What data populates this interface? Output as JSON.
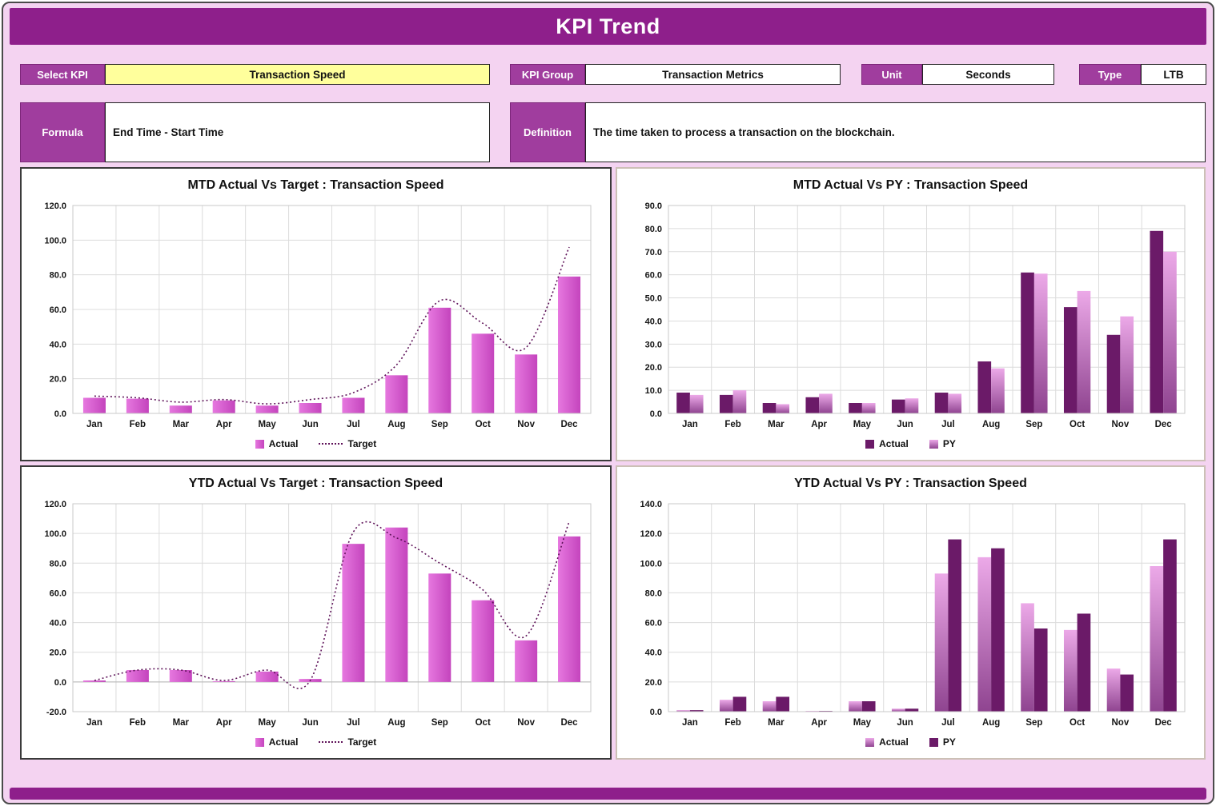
{
  "header": {
    "title": "KPI Trend"
  },
  "controls": {
    "select_kpi": {
      "label": "Select KPI",
      "value": "Transaction Speed"
    },
    "kpi_group": {
      "label": "KPI Group",
      "value": "Transaction Metrics"
    },
    "unit": {
      "label": "Unit",
      "value": "Seconds"
    },
    "type": {
      "label": "Type",
      "value": "LTB"
    },
    "formula": {
      "label": "Formula",
      "value": "End Time - Start Time"
    },
    "definition": {
      "label": "Definition",
      "value": "The time taken to process a transaction on the blockchain."
    }
  },
  "colors": {
    "header_bg": "#8E1F8B",
    "label_bg": "#A03D9E",
    "page_bg": "#F4D3F1",
    "yellow_field": "#FFFF9C",
    "bar_magenta_light": "#E678DF",
    "bar_magenta_dark": "#C444BD",
    "bar_dark_purple": "#6B1A68",
    "py_grad_top": "#ECA9E8",
    "py_grad_bottom": "#8F4490",
    "target_line": "#5E1259",
    "grid": "#DCDCDC"
  },
  "chart_data": [
    {
      "type": "bar",
      "title": "MTD Actual Vs Target : Transaction Speed",
      "categories": [
        "Jan",
        "Feb",
        "Mar",
        "Apr",
        "May",
        "Jun",
        "Jul",
        "Aug",
        "Sep",
        "Oct",
        "Nov",
        "Dec"
      ],
      "series": [
        {
          "name": "Actual",
          "kind": "bar",
          "palette": "magenta",
          "values": [
            9,
            8.5,
            4.5,
            7.5,
            4.5,
            6,
            9,
            22,
            61,
            46,
            34,
            79
          ]
        },
        {
          "name": "Target",
          "kind": "line",
          "palette": "target",
          "values": [
            10,
            9,
            6.5,
            8,
            5.5,
            8,
            12,
            28,
            65,
            52,
            38,
            96
          ]
        }
      ],
      "ylim": [
        0,
        120
      ],
      "ystep": 20,
      "grid": true,
      "legend_position": "bottom"
    },
    {
      "type": "bar",
      "title": "MTD Actual Vs PY : Transaction Speed",
      "categories": [
        "Jan",
        "Feb",
        "Mar",
        "Apr",
        "May",
        "Jun",
        "Jul",
        "Aug",
        "Sep",
        "Oct",
        "Nov",
        "Dec"
      ],
      "series": [
        {
          "name": "Actual",
          "kind": "bar",
          "palette": "darkpurple",
          "values": [
            9,
            8,
            4.5,
            7,
            4.5,
            6,
            9,
            22.5,
            61,
            46,
            34,
            79
          ]
        },
        {
          "name": "PY",
          "kind": "bar",
          "palette": "pygrad",
          "values": [
            8,
            10,
            4,
            8.5,
            4.5,
            6.5,
            8.5,
            19.5,
            60.5,
            53,
            42,
            70
          ]
        }
      ],
      "ylim": [
        0,
        90
      ],
      "ystep": 10,
      "grid": true,
      "legend_position": "bottom"
    },
    {
      "type": "bar",
      "title": "YTD Actual Vs Target : Transaction Speed",
      "categories": [
        "Jan",
        "Feb",
        "Mar",
        "Apr",
        "May",
        "Jun",
        "Jul",
        "Aug",
        "Sep",
        "Oct",
        "Nov",
        "Dec"
      ],
      "series": [
        {
          "name": "Actual",
          "kind": "bar",
          "palette": "magenta",
          "values": [
            1,
            8,
            8,
            0.5,
            7,
            2,
            93,
            104,
            73,
            55,
            28,
            98
          ]
        },
        {
          "name": "Target",
          "kind": "line",
          "palette": "target",
          "values": [
            1,
            8,
            8,
            1,
            8,
            1,
            101,
            97,
            80,
            62,
            31,
            108
          ]
        }
      ],
      "ylim": [
        -20,
        120
      ],
      "ystep": 20,
      "grid": true,
      "legend_position": "bottom"
    },
    {
      "type": "bar",
      "title": "YTD Actual Vs PY : Transaction Speed",
      "categories": [
        "Jan",
        "Feb",
        "Mar",
        "Apr",
        "May",
        "Jun",
        "Jul",
        "Aug",
        "Sep",
        "Oct",
        "Nov",
        "Dec"
      ],
      "series": [
        {
          "name": "Actual",
          "kind": "bar",
          "palette": "pygrad",
          "values": [
            1,
            8,
            7,
            0.5,
            7,
            2,
            93,
            104,
            73,
            55,
            29,
            98
          ]
        },
        {
          "name": "PY",
          "kind": "bar",
          "palette": "darkpurple",
          "values": [
            1,
            10,
            10,
            0.5,
            7,
            2,
            116,
            110,
            56,
            66,
            25,
            116
          ]
        }
      ],
      "ylim": [
        0,
        140
      ],
      "ystep": 20,
      "grid": true,
      "legend_position": "bottom"
    }
  ]
}
